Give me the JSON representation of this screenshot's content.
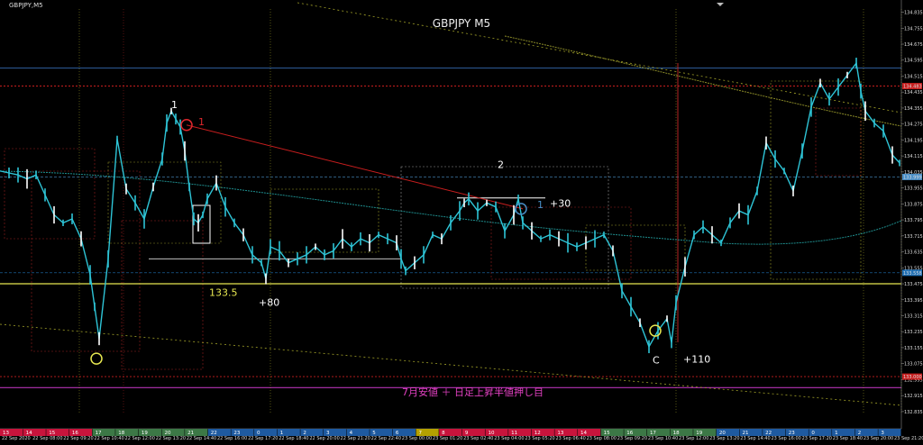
{
  "chart_data": {
    "type": "line",
    "symbol_label": "GBPJPY,M5",
    "title": "GBPJPY M5",
    "ylim": [
      132.83,
      134.86
    ],
    "y_ticks": [
      "134.835",
      "134.755",
      "134.675",
      "134.595",
      "134.515",
      "134.435",
      "134.355",
      "134.275",
      "134.195",
      "134.115",
      "134.035",
      "133.955",
      "133.875",
      "133.795",
      "133.715",
      "133.635",
      "133.555",
      "133.475",
      "133.395",
      "133.315",
      "133.235",
      "133.155",
      "133.075",
      "132.995",
      "132.915",
      "132.835"
    ],
    "price_tags": [
      {
        "value": "134.483",
        "level": 134.465,
        "color": "#c81e1e"
      },
      {
        "value": "133.999",
        "level": 134.01,
        "color": "#4a8fc8"
      },
      {
        "value": "133.558",
        "level": 133.53,
        "color": "#1e6fb4"
      },
      {
        "value": "133.000",
        "level": 133.01,
        "color": "#c81e1e"
      }
    ],
    "x_labels": [
      "22 Sep 2020",
      "22 Sep 08:00",
      "22 Sep 09:20",
      "22 Sep 10:40",
      "22 Sep 12:00",
      "22 Sep 13:20",
      "22 Sep 14:40",
      "22 Sep 16:00",
      "22 Sep 17:20",
      "22 Sep 18:40",
      "22 Sep 20:00",
      "22 Sep 21:20",
      "22 Sep 22:40",
      "23 Sep 00:00",
      "23 Sep 01:20",
      "23 Sep 02:40",
      "23 Sep 04:00",
      "23 Sep 05:20",
      "23 Sep 06:40",
      "23 Sep 08:00",
      "23 Sep 09:20",
      "23 Sep 10:40",
      "23 Sep 12:00",
      "23 Sep 13:20",
      "23 Sep 14:40",
      "23 Sep 16:00",
      "23 Sep 17:20",
      "23 Sep 18:40",
      "23 Sep 20:00",
      "23 Sep 21:20"
    ],
    "hour_labels": [
      "13",
      "14",
      "15",
      "16",
      "17",
      "18",
      "19",
      "20",
      "21",
      "22",
      "23",
      "0",
      "1",
      "2",
      "3",
      "4",
      "5",
      "6",
      "7",
      "8",
      "9",
      "10",
      "11",
      "12",
      "13",
      "14",
      "15",
      "16",
      "17",
      "18",
      "19",
      "20",
      "21",
      "22",
      "23",
      "0",
      "1",
      "2",
      "3"
    ],
    "hour_colors": [
      "#c8143c",
      "#c8143c",
      "#c8143c",
      "#c8143c",
      "#3c7846",
      "#3c7846",
      "#3c7846",
      "#3c7846",
      "#3c7846",
      "#1e5aa0",
      "#1e5aa0",
      "#1e5aa0",
      "#1e5aa0",
      "#1e5aa0",
      "#1e5aa0",
      "#1e5aa0",
      "#1e5aa0",
      "#1e5aa0",
      "#b4a000",
      "#c8143c",
      "#c8143c",
      "#c8143c",
      "#c8143c",
      "#c8143c",
      "#c8143c",
      "#c8143c",
      "#3c7846",
      "#3c7846",
      "#3c7846",
      "#3c7846",
      "#3c7846",
      "#1e5aa0",
      "#1e5aa0",
      "#1e5aa0",
      "#1e5aa0",
      "#1e5aa0",
      "#1e5aa0",
      "#1e5aa0",
      "#1e5aa0"
    ],
    "x": [
      0,
      10,
      20,
      30,
      40,
      50,
      60,
      70,
      80,
      90,
      100,
      105,
      110,
      120,
      130,
      140,
      150,
      160,
      170,
      180,
      185,
      190,
      195,
      200,
      205,
      210,
      215,
      220,
      225,
      230,
      240,
      250,
      260,
      270,
      280,
      290,
      295,
      300,
      310,
      320,
      330,
      340,
      350,
      360,
      370,
      380,
      390,
      400,
      410,
      420,
      430,
      440,
      445,
      450,
      460,
      470,
      480,
      490,
      500,
      510,
      515,
      520,
      530,
      540,
      550,
      560,
      570,
      575,
      580,
      590,
      600,
      610,
      620,
      630,
      640,
      650,
      660,
      670,
      680,
      690,
      700,
      710,
      720,
      730,
      740,
      745,
      750,
      760,
      770,
      780,
      790,
      800,
      810,
      820,
      830,
      840,
      850,
      860,
      870,
      880,
      890,
      900,
      910,
      920,
      930,
      940,
      950,
      955,
      960,
      970,
      980,
      990,
      998
    ],
    "series": [
      {
        "color": "#2ec4d6",
        "values": [
          134.04,
          134.03,
          134.02,
          134.0,
          134.02,
          133.92,
          133.82,
          133.78,
          133.8,
          133.7,
          133.52,
          133.36,
          133.2,
          133.6,
          134.2,
          133.95,
          133.88,
          133.8,
          133.96,
          134.1,
          134.28,
          134.34,
          134.3,
          134.26,
          134.14,
          133.96,
          133.8,
          133.78,
          133.82,
          133.9,
          133.98,
          133.86,
          133.78,
          133.72,
          133.62,
          133.58,
          133.5,
          133.66,
          133.64,
          133.58,
          133.6,
          133.62,
          133.66,
          133.62,
          133.64,
          133.7,
          133.66,
          133.7,
          133.68,
          133.72,
          133.7,
          133.68,
          133.6,
          133.54,
          133.58,
          133.62,
          133.72,
          133.7,
          133.78,
          133.84,
          133.88,
          133.9,
          133.84,
          133.88,
          133.86,
          133.74,
          133.82,
          133.9,
          133.78,
          133.74,
          133.7,
          133.72,
          133.7,
          133.68,
          133.66,
          133.68,
          133.7,
          133.72,
          133.64,
          133.44,
          133.36,
          133.28,
          133.16,
          133.24,
          133.3,
          133.18,
          133.38,
          133.56,
          133.72,
          133.76,
          133.72,
          133.68,
          133.78,
          133.84,
          133.82,
          133.94,
          134.18,
          134.1,
          134.04,
          133.94,
          134.14,
          134.36,
          134.48,
          134.4,
          134.46,
          134.52,
          134.58,
          134.44,
          134.34,
          134.28,
          134.24,
          134.12,
          134.08
        ]
      }
    ],
    "annotations": [
      {
        "text": "1",
        "x": 190,
        "y": 134.355,
        "color": "#ffffff"
      },
      {
        "text": "1",
        "x": 220,
        "y": 134.27,
        "color": "#e0282d"
      },
      {
        "text": "2",
        "x": 552,
        "y": 134.055,
        "color": "#ffffff"
      },
      {
        "text": "1",
        "x": 596,
        "y": 133.855,
        "color": "#4a8fc8"
      },
      {
        "text": "+30",
        "x": 610,
        "y": 133.86,
        "color": "#ffffff"
      },
      {
        "text": "133.5",
        "x": 232,
        "y": 133.415,
        "color": "#e6e650"
      },
      {
        "text": "+80",
        "x": 287,
        "y": 133.365,
        "color": "#ffffff"
      },
      {
        "text": "C",
        "x": 724,
        "y": 133.075,
        "color": "#ffffff"
      },
      {
        "text": "+110",
        "x": 758,
        "y": 133.08,
        "color": "#ffffff"
      },
      {
        "text": "7月安値 ＋ 日足上昇半値押し目",
        "x": 446,
        "y": 132.915,
        "color": "#e040c0"
      }
    ]
  }
}
